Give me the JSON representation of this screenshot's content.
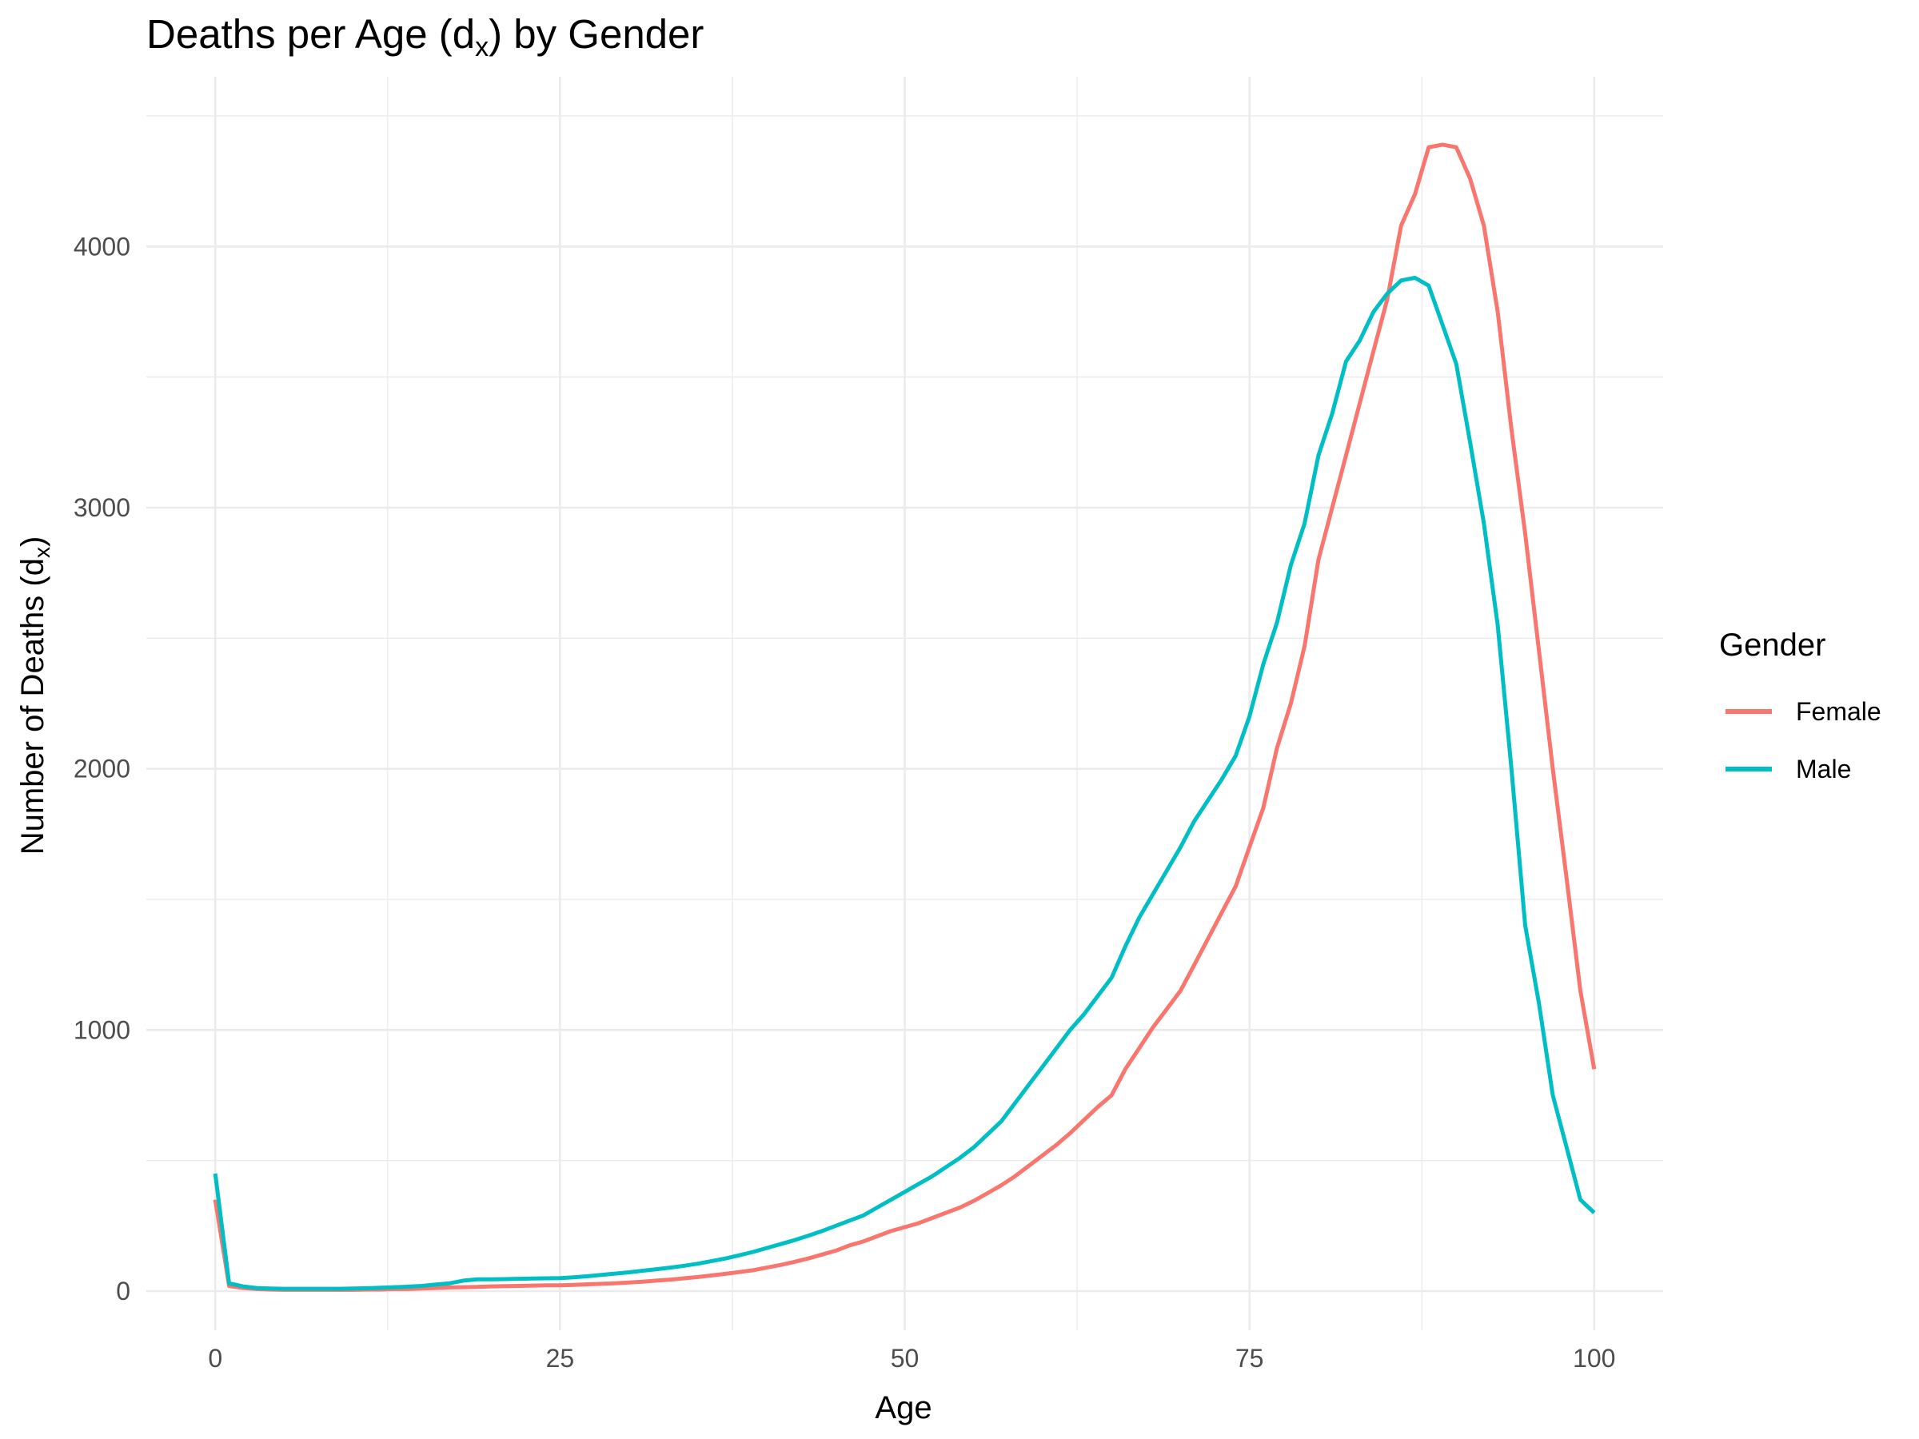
{
  "chart_data": {
    "type": "line",
    "title": "Deaths per Age (d",
    "title_sub": "x",
    "title_end": ") by Gender",
    "xlabel": "Age",
    "ylabel": "Number of Deaths (d",
    "ylabel_sub": "x",
    "ylabel_end": ")",
    "xlim": [
      -5,
      105
    ],
    "ylim": [
      -150,
      4650
    ],
    "x_ticks": [
      0,
      25,
      50,
      75,
      100
    ],
    "x_tick_labels": [
      "0",
      "25",
      "50",
      "75",
      "100"
    ],
    "y_ticks": [
      0,
      1000,
      2000,
      3000,
      4000
    ],
    "y_tick_labels": [
      "0",
      "1000",
      "2000",
      "3000",
      "4000"
    ],
    "grid": true,
    "legend": {
      "title": "Gender",
      "position": "right"
    },
    "x": [
      0,
      1,
      2,
      3,
      4,
      5,
      6,
      7,
      8,
      9,
      10,
      11,
      12,
      13,
      14,
      15,
      16,
      17,
      18,
      19,
      20,
      21,
      22,
      23,
      24,
      25,
      26,
      27,
      28,
      29,
      30,
      31,
      32,
      33,
      34,
      35,
      36,
      37,
      38,
      39,
      40,
      41,
      42,
      43,
      44,
      45,
      46,
      47,
      48,
      49,
      50,
      51,
      52,
      53,
      54,
      55,
      56,
      57,
      58,
      59,
      60,
      61,
      62,
      63,
      64,
      65,
      66,
      67,
      68,
      69,
      70,
      71,
      72,
      73,
      74,
      75,
      76,
      77,
      78,
      79,
      80,
      81,
      82,
      83,
      84,
      85,
      86,
      87,
      88,
      89,
      90,
      91,
      92,
      93,
      94,
      95,
      96,
      97,
      98,
      99,
      100
    ],
    "series": [
      {
        "name": "Female",
        "color": "#F8766D",
        "values": [
          350,
          20,
          12,
          8,
          6,
          5,
          5,
          5,
          5,
          5,
          5,
          6,
          6,
          8,
          8,
          10,
          12,
          14,
          15,
          16,
          18,
          19,
          20,
          21,
          22,
          22,
          24,
          26,
          28,
          30,
          33,
          36,
          40,
          44,
          49,
          54,
          60,
          66,
          73,
          80,
          90,
          100,
          112,
          125,
          140,
          155,
          175,
          190,
          210,
          230,
          245,
          260,
          280,
          300,
          320,
          345,
          375,
          405,
          440,
          480,
          520,
          560,
          605,
          655,
          705,
          750,
          850,
          930,
          1010,
          1080,
          1150,
          1250,
          1350,
          1450,
          1550,
          1700,
          1850,
          2080,
          2250,
          2470,
          2800,
          3000,
          3200,
          3400,
          3600,
          3800,
          4080,
          4200,
          4380,
          4390,
          4380,
          4260,
          4080,
          3750,
          3300,
          2900,
          2450,
          2000,
          1580,
          1150,
          850
        ]
      },
      {
        "name": "Male",
        "color": "#00BFC4",
        "values": [
          450,
          30,
          18,
          12,
          10,
          9,
          9,
          9,
          9,
          9,
          10,
          11,
          13,
          15,
          17,
          20,
          25,
          30,
          40,
          45,
          45,
          46,
          47,
          48,
          49,
          50,
          53,
          57,
          62,
          67,
          72,
          78,
          84,
          90,
          97,
          105,
          115,
          125,
          137,
          150,
          165,
          180,
          195,
          212,
          230,
          250,
          270,
          290,
          320,
          350,
          380,
          410,
          440,
          475,
          510,
          550,
          600,
          650,
          720,
          790,
          860,
          930,
          1000,
          1060,
          1130,
          1200,
          1320,
          1430,
          1520,
          1610,
          1700,
          1800,
          1880,
          1960,
          2050,
          2200,
          2400,
          2560,
          2780,
          2940,
          3200,
          3360,
          3560,
          3640,
          3750,
          3820,
          3870,
          3880,
          3850,
          3700,
          3550,
          3250,
          2940,
          2550,
          2000,
          1400,
          1100,
          750,
          550,
          350,
          300
        ]
      }
    ]
  }
}
